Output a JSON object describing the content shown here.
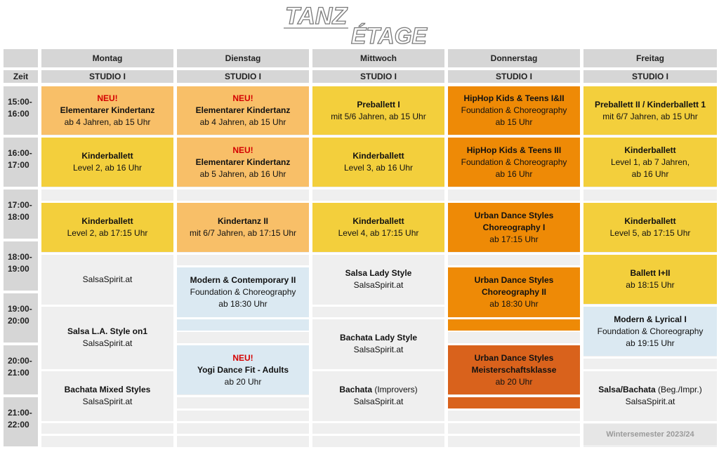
{
  "logo": {
    "line1": "TANZ",
    "line2": "ÉTAGE"
  },
  "header": {
    "time_label": "Zeit",
    "days": [
      "Montag",
      "Dienstag",
      "Mittwoch",
      "Donnerstag",
      "Freitag"
    ],
    "studio": "STUDIO I"
  },
  "times": [
    [
      "15:00-",
      "16:00"
    ],
    [
      "16:00-",
      "17:00"
    ],
    [
      "17:00-",
      "18:00"
    ],
    [
      "18:00-",
      "19:00"
    ],
    [
      "19:00-",
      "20:00"
    ],
    [
      "20:00-",
      "21:00"
    ],
    [
      "21:00-",
      "22:00"
    ]
  ],
  "colors": {
    "yellow": "#f3cf3c",
    "light_orange": "#f8bf68",
    "orange": "#ee8a06",
    "dark_orange": "#d9621c",
    "light_blue": "#dbe9f2",
    "grey": "#efefef",
    "neu_red": "#d40000"
  },
  "classes": {
    "mon": [
      {
        "neu": "NEU!",
        "title": "Elementarer Kindertanz",
        "lines": [
          "ab 4 Jahren, ab 15 Uhr"
        ]
      },
      {
        "title": "Kinderballett",
        "lines": [
          "Level 2, ab 16 Uhr"
        ]
      },
      {
        "title": "Kinderballett",
        "lines": [
          "Level 2, ab 17:15 Uhr"
        ]
      },
      {
        "lines": [
          "SalsaSpirit.at"
        ]
      },
      {
        "title": "Salsa L.A. Style on1",
        "lines": [
          "SalsaSpirit.at"
        ]
      },
      {
        "title": "Bachata Mixed Styles",
        "lines": [
          "SalsaSpirit.at"
        ]
      }
    ],
    "tue": [
      {
        "neu": "NEU!",
        "title": "Elementarer Kindertanz",
        "lines": [
          "ab 4 Jahren, ab 15 Uhr"
        ]
      },
      {
        "neu": "NEU!",
        "title": "Elementarer Kindertanz",
        "lines": [
          "ab 5 Jahren, ab 16 Uhr"
        ]
      },
      {
        "title": "Kindertanz II",
        "lines": [
          "mit 6/7 Jahren, ab 17:15 Uhr"
        ]
      },
      {
        "title": "Modern & Contemporary II",
        "lines": [
          "Foundation & Choreography",
          "ab 18:30 Uhr"
        ]
      },
      {
        "neu": "NEU!",
        "title": "Yogi Dance Fit - Adults",
        "lines": [
          "ab 20 Uhr"
        ]
      }
    ],
    "wed": [
      {
        "title": "Preballett I",
        "lines": [
          "mit 5/6 Jahren, ab 15 Uhr"
        ]
      },
      {
        "title": "Kinderballett",
        "lines": [
          "Level 3, ab 16 Uhr"
        ]
      },
      {
        "title": "Kinderballett",
        "lines": [
          "Level 4, ab 17:15 Uhr"
        ]
      },
      {
        "title": "Salsa Lady Style",
        "lines": [
          "SalsaSpirit.at"
        ]
      },
      {
        "title": "Bachata Lady Style",
        "lines": [
          "SalsaSpirit.at"
        ]
      },
      {
        "title": "Bachata",
        "title_suffix": " (Improvers)",
        "lines": [
          "SalsaSpirit.at"
        ]
      }
    ],
    "thu": [
      {
        "title": "HipHop Kids & Teens I&II",
        "lines": [
          "Foundation & Choreography",
          "ab 15 Uhr"
        ]
      },
      {
        "title": "HipHop Kids & Teens III",
        "lines": [
          "Foundation & Choreography",
          "ab 16 Uhr"
        ]
      },
      {
        "title": "Urban Dance Styles",
        "title2": "Choreography I",
        "lines": [
          "ab 17:15 Uhr"
        ]
      },
      {
        "title": "Urban Dance Styles",
        "title2": "Choreography II",
        "lines": [
          "ab 18:30 Uhr"
        ]
      },
      {
        "title": "Urban Dance Styles",
        "title2": "Meisterschaftsklasse",
        "lines": [
          "ab 20 Uhr"
        ]
      }
    ],
    "fri": [
      {
        "title": "Preballett II / Kinderballett 1",
        "lines": [
          "mit 6/7 Jahren, ab 15 Uhr"
        ]
      },
      {
        "title": "Kinderballett",
        "lines": [
          "Level 1, ab 7 Jahren,",
          "ab 16 Uhr"
        ]
      },
      {
        "title": "Kinderballett",
        "lines": [
          "Level 5, ab 17:15 Uhr"
        ]
      },
      {
        "title": "Ballett I+II",
        "lines": [
          "ab 18:15 Uhr"
        ]
      },
      {
        "title": "Modern & Lyrical I",
        "lines": [
          "Foundation & Choreography",
          "ab 19:15 Uhr"
        ]
      },
      {
        "title": "Salsa/Bachata",
        "title_suffix": " (Beg./Impr.)",
        "lines": [
          "SalsaSpirit.at"
        ]
      }
    ]
  },
  "footer": {
    "season": "Wintersemester 2023/24"
  }
}
